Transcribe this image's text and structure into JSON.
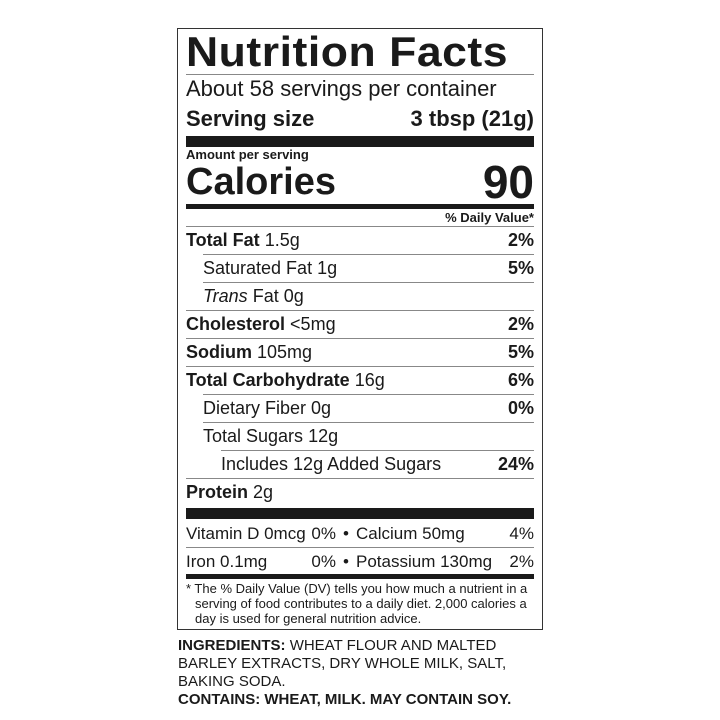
{
  "title": "Nutrition Facts",
  "servings_per_container": "About 58 servings per container",
  "serving_size": {
    "label": "Serving size",
    "value": "3 tbsp (21g)"
  },
  "amount_per_serving": "Amount per serving",
  "calories": {
    "label": "Calories",
    "value": "90"
  },
  "daily_value_header": "% Daily Value*",
  "nutrients": [
    {
      "name": "Total Fat",
      "amount": "1.5g",
      "dv": "2%",
      "bold": true,
      "indent": 0
    },
    {
      "name": "Saturated Fat",
      "amount": "1g",
      "dv": "5%",
      "bold": false,
      "indent": 1
    },
    {
      "name": "Trans",
      "name_suffix": "Fat",
      "amount": "0g",
      "dv": "",
      "bold": false,
      "indent": 1
    },
    {
      "name": "Cholesterol",
      "amount": "<5mg",
      "dv": "2%",
      "bold": true,
      "indent": 0
    },
    {
      "name": "Sodium",
      "amount": "105mg",
      "dv": "5%",
      "bold": true,
      "indent": 0
    },
    {
      "name": "Total Carbohydrate",
      "amount": "16g",
      "dv": "6%",
      "bold": true,
      "indent": 0
    },
    {
      "name": "Dietary Fiber",
      "amount": "0g",
      "dv": "0%",
      "bold": false,
      "indent": 1
    },
    {
      "name": "Total Sugars",
      "amount": "12g",
      "dv": "",
      "bold": false,
      "indent": 1
    },
    {
      "name": "Includes 12g Added Sugars",
      "amount": "",
      "dv": "24%",
      "bold": false,
      "indent": 2
    },
    {
      "name": "Protein",
      "amount": "2g",
      "dv": "",
      "bold": true,
      "indent": 0
    }
  ],
  "vitamins": [
    {
      "left_name": "Vitamin D 0mcg",
      "left_dv": "0%",
      "right_name": "Calcium 50mg",
      "right_dv": "4%"
    },
    {
      "left_name": "Iron 0.1mg",
      "left_dv": "0%",
      "right_name": "Potassium 130mg",
      "right_dv": "2%"
    }
  ],
  "bullet": "•",
  "footnote": "* The % Daily Value (DV) tells you how much a nutrient in a serving of food contributes to a daily diet. 2,000 calories a day is used for general nutrition advice.",
  "ingredients": {
    "label": "INGREDIENTS:",
    "text": "WHEAT FLOUR AND MALTED BARLEY EXTRACTS, DRY WHOLE MILK, SALT, BAKING SODA."
  },
  "contains": "CONTAINS: WHEAT, MILK. MAY CONTAIN SOY."
}
